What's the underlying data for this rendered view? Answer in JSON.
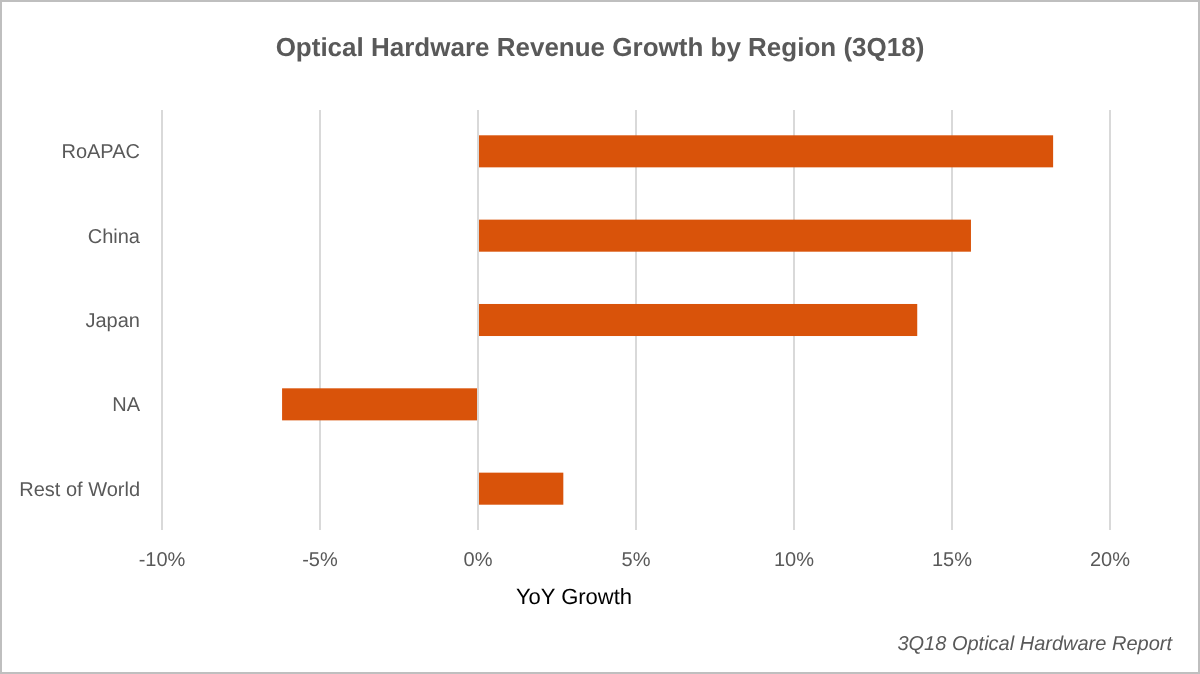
{
  "chart_data": {
    "type": "bar",
    "orientation": "horizontal",
    "title": "Optical Hardware Revenue Growth by Region (3Q18)",
    "xlabel": "YoY Growth",
    "categories": [
      "RoAPAC",
      "China",
      "Japan",
      "NA",
      "Rest of World"
    ],
    "values": [
      18.2,
      15.6,
      13.9,
      -6.2,
      2.7
    ],
    "color": "#d9530a",
    "xlim": [
      -10,
      20
    ],
    "xticks": [
      {
        "value": -10,
        "label": "-10%"
      },
      {
        "value": -5,
        "label": "-5%"
      },
      {
        "value": 0,
        "label": "0%"
      },
      {
        "value": 5,
        "label": "5%"
      },
      {
        "value": 10,
        "label": "10%"
      },
      {
        "value": 15,
        "label": "15%"
      },
      {
        "value": 20,
        "label": "20%"
      }
    ],
    "grid": "x",
    "annotations": [
      "3Q18 Optical Hardware Report"
    ]
  }
}
